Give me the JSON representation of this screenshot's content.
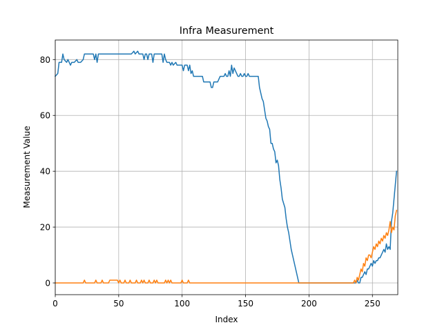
{
  "chart_data": {
    "type": "line",
    "title": "Infra Measurement",
    "xlabel": "Index",
    "ylabel": "Measurement Value",
    "xlim": [
      0,
      270
    ],
    "ylim": [
      -4.2,
      87
    ],
    "xticks": [
      0,
      50,
      100,
      150,
      200,
      250
    ],
    "yticks": [
      0,
      20,
      40,
      60,
      80
    ],
    "grid": true,
    "legend": "none",
    "series": [
      {
        "color": "#1f77b4",
        "points": [
          [
            0,
            74
          ],
          [
            2,
            75
          ],
          [
            3,
            79
          ],
          [
            5,
            79
          ],
          [
            6,
            82
          ],
          [
            7,
            80
          ],
          [
            9,
            79
          ],
          [
            10,
            80
          ],
          [
            12,
            78
          ],
          [
            13,
            79
          ],
          [
            15,
            79
          ],
          [
            17,
            80
          ],
          [
            18,
            79
          ],
          [
            20,
            79
          ],
          [
            22,
            80
          ],
          [
            23,
            82
          ],
          [
            30,
            82
          ],
          [
            31,
            80
          ],
          [
            32,
            82
          ],
          [
            33,
            79
          ],
          [
            34,
            82
          ],
          [
            40,
            82
          ],
          [
            60,
            82
          ],
          [
            62,
            83
          ],
          [
            63,
            82
          ],
          [
            65,
            83
          ],
          [
            66,
            82
          ],
          [
            69,
            82
          ],
          [
            70,
            80
          ],
          [
            71,
            82
          ],
          [
            72,
            82
          ],
          [
            73,
            80
          ],
          [
            74,
            82
          ],
          [
            76,
            82
          ],
          [
            77,
            79
          ],
          [
            78,
            82
          ],
          [
            82,
            82
          ],
          [
            84,
            82
          ],
          [
            85,
            79
          ],
          [
            86,
            82
          ],
          [
            87,
            80
          ],
          [
            88,
            79
          ],
          [
            90,
            79
          ],
          [
            91,
            78
          ],
          [
            92,
            79
          ],
          [
            93,
            78
          ],
          [
            95,
            79
          ],
          [
            96,
            78
          ],
          [
            100,
            78
          ],
          [
            101,
            76
          ],
          [
            102,
            78
          ],
          [
            104,
            78
          ],
          [
            105,
            76
          ],
          [
            106,
            78
          ],
          [
            107,
            75
          ],
          [
            108,
            76
          ],
          [
            109,
            74
          ],
          [
            116,
            74
          ],
          [
            117,
            72
          ],
          [
            122,
            72
          ],
          [
            123,
            70
          ],
          [
            124,
            70
          ],
          [
            125,
            72
          ],
          [
            128,
            72
          ],
          [
            130,
            74
          ],
          [
            133,
            74
          ],
          [
            134,
            75
          ],
          [
            135,
            74
          ],
          [
            136,
            74
          ],
          [
            137,
            76
          ],
          [
            138,
            74
          ],
          [
            139,
            78
          ],
          [
            140,
            75
          ],
          [
            141,
            77
          ],
          [
            142,
            76
          ],
          [
            143,
            75
          ],
          [
            144,
            74
          ],
          [
            145,
            74
          ],
          [
            146,
            75
          ],
          [
            147,
            74
          ],
          [
            148,
            74
          ],
          [
            149,
            75
          ],
          [
            150,
            74
          ],
          [
            151,
            74
          ],
          [
            152,
            75
          ],
          [
            153,
            74
          ],
          [
            154,
            74
          ],
          [
            160,
            74
          ],
          [
            161,
            70
          ],
          [
            163,
            66
          ],
          [
            164,
            65
          ],
          [
            165,
            62
          ],
          [
            166,
            59
          ],
          [
            167,
            58
          ],
          [
            168,
            56
          ],
          [
            169,
            55
          ],
          [
            170,
            50
          ],
          [
            171,
            50
          ],
          [
            172,
            48
          ],
          [
            173,
            47
          ],
          [
            174,
            43
          ],
          [
            175,
            44
          ],
          [
            176,
            42
          ],
          [
            177,
            37
          ],
          [
            178,
            34
          ],
          [
            179,
            30
          ],
          [
            181,
            27
          ],
          [
            182,
            23
          ],
          [
            183,
            20
          ],
          [
            184,
            18
          ],
          [
            185,
            15
          ],
          [
            186,
            12
          ],
          [
            187,
            10
          ],
          [
            188,
            8
          ],
          [
            189,
            6
          ],
          [
            190,
            4
          ],
          [
            191,
            2
          ],
          [
            192,
            0
          ],
          [
            237,
            0
          ],
          [
            238,
            1
          ],
          [
            239,
            0
          ],
          [
            240,
            0
          ],
          [
            241,
            2
          ],
          [
            242,
            2
          ],
          [
            243,
            3
          ],
          [
            244,
            4
          ],
          [
            245,
            3
          ],
          [
            246,
            5
          ],
          [
            247,
            5
          ],
          [
            248,
            6
          ],
          [
            249,
            7
          ],
          [
            250,
            6
          ],
          [
            251,
            8
          ],
          [
            252,
            7
          ],
          [
            253,
            8
          ],
          [
            254,
            8
          ],
          [
            255,
            9
          ],
          [
            256,
            9
          ],
          [
            257,
            10
          ],
          [
            258,
            11
          ],
          [
            259,
            12
          ],
          [
            260,
            11
          ],
          [
            261,
            14
          ],
          [
            262,
            12
          ],
          [
            263,
            13
          ],
          [
            264,
            12
          ],
          [
            265,
            22
          ],
          [
            266,
            25
          ],
          [
            267,
            30
          ],
          [
            268,
            35
          ],
          [
            269,
            40
          ]
        ]
      },
      {
        "color": "#ff7f0e",
        "points": [
          [
            0,
            0
          ],
          [
            22,
            0
          ],
          [
            23,
            1
          ],
          [
            24,
            0
          ],
          [
            31,
            0
          ],
          [
            32,
            1
          ],
          [
            33,
            0
          ],
          [
            36,
            0
          ],
          [
            37,
            1
          ],
          [
            38,
            0
          ],
          [
            42,
            0
          ],
          [
            43,
            1
          ],
          [
            49,
            1
          ],
          [
            50,
            0
          ],
          [
            51,
            1
          ],
          [
            52,
            0
          ],
          [
            54,
            0
          ],
          [
            55,
            1
          ],
          [
            56,
            0
          ],
          [
            58,
            0
          ],
          [
            59,
            1
          ],
          [
            60,
            0
          ],
          [
            63,
            0
          ],
          [
            64,
            1
          ],
          [
            65,
            0
          ],
          [
            67,
            0
          ],
          [
            68,
            1
          ],
          [
            69,
            0
          ],
          [
            70,
            1
          ],
          [
            71,
            0
          ],
          [
            73,
            0
          ],
          [
            74,
            1
          ],
          [
            75,
            0
          ],
          [
            77,
            0
          ],
          [
            78,
            1
          ],
          [
            79,
            0
          ],
          [
            80,
            1
          ],
          [
            81,
            0
          ],
          [
            86,
            0
          ],
          [
            87,
            1
          ],
          [
            88,
            0
          ],
          [
            89,
            1
          ],
          [
            90,
            0
          ],
          [
            91,
            1
          ],
          [
            92,
            0
          ],
          [
            99,
            0
          ],
          [
            100,
            1
          ],
          [
            101,
            0
          ],
          [
            104,
            0
          ],
          [
            105,
            1
          ],
          [
            106,
            0
          ],
          [
            235,
            0
          ],
          [
            236,
            1
          ],
          [
            237,
            0
          ],
          [
            238,
            2
          ],
          [
            239,
            1
          ],
          [
            240,
            3
          ],
          [
            241,
            5
          ],
          [
            242,
            4
          ],
          [
            243,
            7
          ],
          [
            244,
            6
          ],
          [
            245,
            9
          ],
          [
            246,
            8
          ],
          [
            247,
            10
          ],
          [
            248,
            10
          ],
          [
            249,
            9
          ],
          [
            250,
            11
          ],
          [
            251,
            13
          ],
          [
            252,
            12
          ],
          [
            253,
            14
          ],
          [
            254,
            13
          ],
          [
            255,
            15
          ],
          [
            256,
            14
          ],
          [
            257,
            16
          ],
          [
            258,
            15
          ],
          [
            259,
            17
          ],
          [
            260,
            16
          ],
          [
            261,
            18
          ],
          [
            262,
            17
          ],
          [
            263,
            19
          ],
          [
            264,
            22
          ],
          [
            265,
            18
          ],
          [
            266,
            20
          ],
          [
            267,
            19
          ],
          [
            268,
            24
          ],
          [
            269,
            26
          ]
        ]
      }
    ]
  }
}
